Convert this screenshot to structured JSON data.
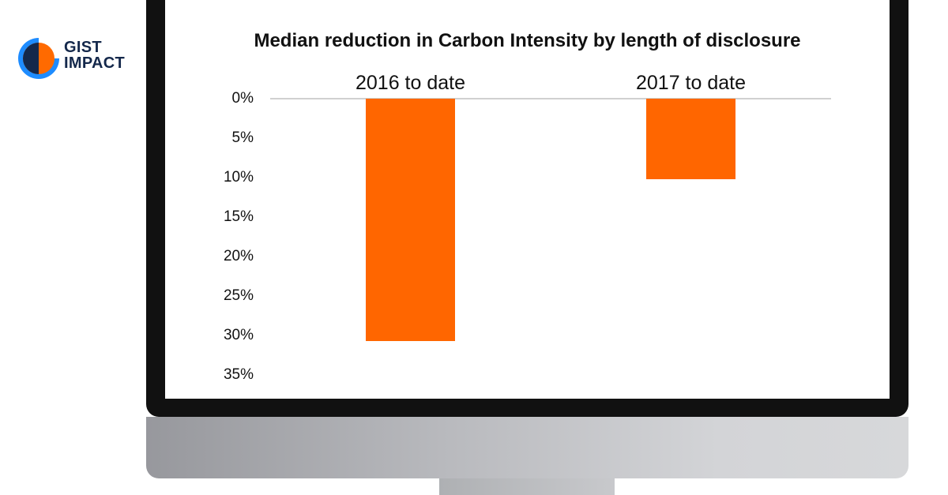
{
  "brand": {
    "logo_line1": "GIST",
    "logo_line2": "IMPACT"
  },
  "colors": {
    "bar": "#ff6600",
    "bezel": "#111111",
    "logo_navy": "#14284b",
    "logo_blue": "#1e8cff",
    "logo_orange": "#ff6a00"
  },
  "chart_data": {
    "type": "bar",
    "title": "Median reduction in Carbon Intensity by length of disclosure",
    "categories": [
      "2016 to date",
      "2017 to date"
    ],
    "values": [
      30.7,
      10.2
    ],
    "ylim": [
      0,
      35
    ],
    "y_inverted": true,
    "x_axis_position": "top",
    "yticks": [
      "0%",
      "5%",
      "10%",
      "15%",
      "20%",
      "25%",
      "30%",
      "35%"
    ],
    "ytick_values": [
      0,
      5,
      10,
      15,
      20,
      25,
      30,
      35
    ],
    "grid": false,
    "legend": "none"
  }
}
